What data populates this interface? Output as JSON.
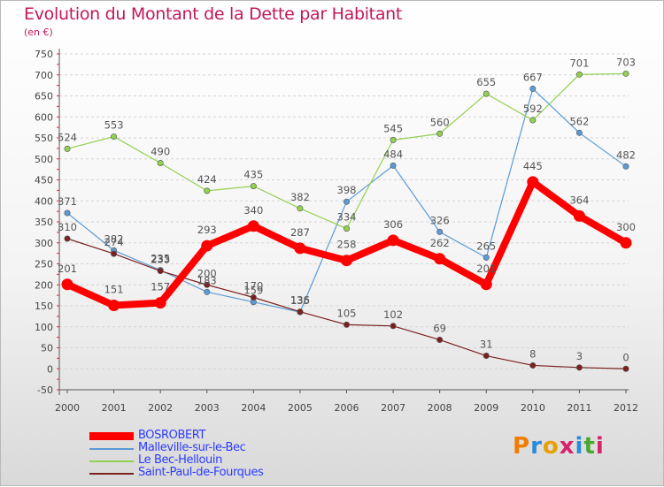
{
  "title": "Evolution du Montant de la Dette par Habitant",
  "subtitle": "(en €)",
  "logo": {
    "text": "Proxiti",
    "letter_colors": [
      "#f07d00",
      "#2a8bd6",
      "#e8a000",
      "#d8226a",
      "#2a8bd6",
      "#4aa832",
      "#d8226a"
    ]
  },
  "chart_data": {
    "type": "line",
    "x": [
      "2000",
      "2001",
      "2002",
      "2003",
      "2004",
      "2005",
      "2006",
      "2007",
      "2008",
      "2009",
      "2010",
      "2011",
      "2012"
    ],
    "ylim": [
      -50,
      750
    ],
    "yticks": [
      -50,
      0,
      50,
      100,
      150,
      200,
      250,
      300,
      350,
      400,
      450,
      500,
      550,
      600,
      650,
      700,
      750
    ],
    "grid": "horizontal",
    "legend_position": "bottom-left",
    "series": [
      {
        "name": "BOSROBERT",
        "color": "#ff0000",
        "emphasis": true,
        "values": [
          201,
          151,
          157,
          293,
          340,
          287,
          258,
          306,
          262,
          201,
          445,
          364,
          300
        ]
      },
      {
        "name": "Malleville-sur-le-Bec",
        "color": "#5b9bd5",
        "values": [
          371,
          282,
          235,
          183,
          159,
          135,
          398,
          484,
          326,
          265,
          667,
          562,
          482
        ]
      },
      {
        "name": "Le Bec-Hellouin",
        "color": "#92d050",
        "values": [
          524,
          553,
          490,
          424,
          435,
          382,
          334,
          545,
          560,
          655,
          592,
          701,
          703
        ]
      },
      {
        "name": "Saint-Paul-de-Fourques",
        "color": "#7b2020",
        "values": [
          310,
          274,
          233,
          200,
          170,
          136,
          105,
          102,
          69,
          31,
          8,
          3,
          0
        ]
      }
    ]
  }
}
